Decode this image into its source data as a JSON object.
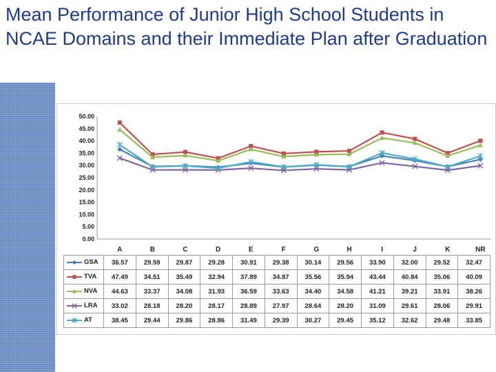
{
  "title": "Mean Performance of Junior High School Students in NCAE Domains and their Immediate Plan after Graduation",
  "chart_data": {
    "type": "line",
    "title": "Mean Performance of Junior High School Students in NCAE Domains and their Immediate Plan after Graduation",
    "categories": [
      "A",
      "B",
      "C",
      "D",
      "E",
      "F",
      "G",
      "H",
      "I",
      "J",
      "K",
      "NR"
    ],
    "ylim": [
      0,
      50
    ],
    "yticks": [
      "0.00",
      "5.00",
      "10.00",
      "15.00",
      "20.00",
      "25.00",
      "30.00",
      "35.00",
      "40.00",
      "45.00",
      "50.00"
    ],
    "grid": false,
    "legend": "data-table",
    "series": [
      {
        "name": "GSA",
        "color": "#4a7ebb",
        "marker": "diamond",
        "values": [
          36.57,
          29.59,
          29.87,
          29.28,
          30.91,
          29.38,
          30.14,
          29.56,
          33.9,
          32.0,
          29.52,
          32.47
        ],
        "labels": [
          "36.57",
          "29.59",
          "29.87",
          "29.28",
          "30.91",
          "29.38",
          "30.14",
          "29.56",
          "33.90",
          "32.00",
          "29.52",
          "32.47"
        ]
      },
      {
        "name": "TVA",
        "color": "#c0504d",
        "marker": "square",
        "values": [
          47.49,
          34.51,
          35.49,
          32.94,
          37.89,
          34.87,
          35.56,
          35.94,
          43.44,
          40.84,
          35.06,
          40.09
        ],
        "labels": [
          "47.49",
          "34.51",
          "35.49",
          "32.94",
          "37.89",
          "34.87",
          "35.56",
          "35.94",
          "43.44",
          "40.84",
          "35.06",
          "40.09"
        ]
      },
      {
        "name": "NVA",
        "color": "#9bbb59",
        "marker": "triangle",
        "values": [
          44.63,
          33.37,
          34.08,
          31.93,
          36.59,
          33.63,
          34.4,
          34.58,
          41.21,
          39.21,
          33.91,
          38.26
        ],
        "labels": [
          "44.63",
          "33.37",
          "34.08",
          "31.93",
          "36.59",
          "33.63",
          "34.40",
          "34.58",
          "41.21",
          "39.21",
          "33.91",
          "38.26"
        ]
      },
      {
        "name": "LRA",
        "color": "#8064a2",
        "marker": "x",
        "values": [
          33.02,
          28.18,
          28.2,
          28.17,
          28.89,
          27.97,
          28.64,
          28.2,
          31.09,
          29.61,
          28.06,
          29.91
        ],
        "labels": [
          "33.02",
          "28.18",
          "28.20",
          "28.17",
          "28.89",
          "27.97",
          "28.64",
          "28.20",
          "31.09",
          "29.61",
          "28.06",
          "29.91"
        ]
      },
      {
        "name": "AT",
        "color": "#4bacc6",
        "marker": "star",
        "values": [
          38.45,
          29.44,
          29.86,
          28.86,
          31.49,
          29.39,
          30.27,
          29.45,
          35.12,
          32.62,
          29.48,
          33.85
        ],
        "labels": [
          "38.45",
          "29.44",
          "29.86",
          "28.86",
          "31.49",
          "29.39",
          "30.27",
          "29.45",
          "35.12",
          "32.62",
          "29.48",
          "33.85"
        ]
      }
    ]
  }
}
